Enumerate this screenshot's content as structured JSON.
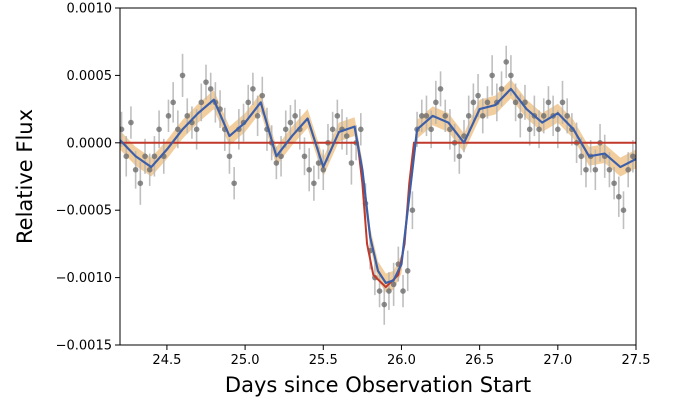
{
  "chart_data": {
    "type": "line",
    "title": "",
    "xlabel": "Days since Observation Start",
    "ylabel": "Relative Flux",
    "xlim": [
      24.2,
      27.5
    ],
    "ylim": [
      -0.0015,
      0.001
    ],
    "x_ticks": [
      24.5,
      25.0,
      25.5,
      26.0,
      26.5,
      27.0,
      27.5
    ],
    "x_tick_labels": [
      "24.5",
      "25.0",
      "25.5",
      "26.0",
      "26.5",
      "27.0",
      "27.5"
    ],
    "y_ticks": [
      0.001,
      0.0005,
      0.0,
      -0.0005,
      -0.001,
      -0.0015
    ],
    "y_tick_labels": [
      "0.0010",
      "0.0005",
      "0.0000",
      "−0.0005",
      "−0.0010",
      "−0.0015"
    ],
    "grid": false,
    "legend": "none",
    "colors": {
      "points": "#6e6e6e",
      "errorbars": "#b4b4b4",
      "gp_mean": "#3d5fa8",
      "gp_band": "#e8a64e",
      "transit_model": "#c0392b"
    },
    "series": [
      {
        "kind": "gp_mean",
        "x": [
          24.2,
          24.3,
          24.4,
          24.5,
          24.6,
          24.7,
          24.8,
          24.9,
          25.0,
          25.1,
          25.2,
          25.3,
          25.4,
          25.5,
          25.6,
          25.7,
          25.75,
          25.8,
          25.85,
          25.9,
          25.95,
          26.0,
          26.05,
          26.1,
          26.2,
          26.3,
          26.4,
          26.5,
          26.6,
          26.7,
          26.8,
          26.9,
          27.0,
          27.1,
          27.2,
          27.3,
          27.4,
          27.5
        ],
        "y": [
          2e-05,
          -0.0001,
          -0.00018,
          -5e-05,
          0.0001,
          0.00022,
          0.00032,
          5e-05,
          0.00015,
          0.0003,
          -0.0001,
          5e-05,
          0.00018,
          -0.00018,
          8e-05,
          0.00012,
          -0.0002,
          -0.0007,
          -0.00095,
          -0.00104,
          -0.00102,
          -0.0009,
          -0.0004,
          0.0001,
          0.0002,
          0.00015,
          0.0,
          0.00025,
          0.00028,
          0.0004,
          0.00025,
          0.00015,
          0.00022,
          0.0001,
          -0.0001,
          -8e-05,
          -0.00018,
          -0.00012
        ]
      },
      {
        "kind": "transit_model",
        "x": [
          24.2,
          25.72,
          25.75,
          25.78,
          25.82,
          25.9,
          25.98,
          26.02,
          26.05,
          26.08,
          27.5
        ],
        "y": [
          0.0,
          0.0,
          -0.0003,
          -0.00075,
          -0.00098,
          -0.00107,
          -0.00098,
          -0.00075,
          -0.0003,
          0.0,
          0.0
        ]
      },
      {
        "kind": "data_points",
        "x": [
          24.21,
          24.24,
          24.27,
          24.3,
          24.33,
          24.36,
          24.39,
          24.42,
          24.45,
          24.48,
          24.51,
          24.54,
          24.57,
          24.6,
          24.63,
          24.66,
          24.69,
          24.72,
          24.75,
          24.78,
          24.81,
          24.84,
          24.87,
          24.9,
          24.93,
          24.96,
          24.99,
          25.02,
          25.05,
          25.08,
          25.11,
          25.14,
          25.17,
          25.2,
          25.23,
          25.26,
          25.29,
          25.32,
          25.35,
          25.38,
          25.41,
          25.44,
          25.47,
          25.5,
          25.53,
          25.56,
          25.59,
          25.62,
          25.65,
          25.68,
          25.71,
          25.74,
          25.77,
          25.8,
          25.83,
          25.86,
          25.89,
          25.92,
          25.95,
          25.98,
          26.01,
          26.04,
          26.07,
          26.1,
          26.13,
          26.16,
          26.19,
          26.22,
          26.25,
          26.28,
          26.31,
          26.34,
          26.37,
          26.4,
          26.43,
          26.46,
          26.49,
          26.52,
          26.55,
          26.58,
          26.61,
          26.64,
          26.67,
          26.7,
          26.73,
          26.76,
          26.79,
          26.82,
          26.85,
          26.88,
          26.91,
          26.94,
          26.97,
          27.0,
          27.03,
          27.06,
          27.09,
          27.12,
          27.15,
          27.18,
          27.21,
          27.24,
          27.27,
          27.3,
          27.33,
          27.36,
          27.39,
          27.42,
          27.45,
          27.48
        ],
        "y": [
          0.0001,
          -0.0001,
          0.00015,
          -0.0002,
          -0.0003,
          -0.0001,
          -0.0002,
          -0.0001,
          0.0001,
          -0.0001,
          0.0002,
          0.0003,
          0.0001,
          0.0005,
          0.0002,
          0.00015,
          0.0001,
          0.0003,
          0.00045,
          0.0004,
          0.0003,
          0.00025,
          0.0001,
          -0.0001,
          -0.0003,
          0.0001,
          0.00015,
          0.0003,
          0.0004,
          0.0002,
          0.00035,
          0.0001,
          0.0,
          -0.00015,
          -0.0001,
          0.0001,
          0.00015,
          0.0002,
          0.0001,
          -0.0001,
          -0.0002,
          -0.0003,
          -0.00015,
          -0.0002,
          0.0,
          0.0001,
          0.0002,
          0.0001,
          5e-05,
          -0.00015,
          0.0,
          0.0001,
          -0.00045,
          -0.0008,
          -0.001,
          -0.0011,
          -0.0012,
          -0.0011,
          -0.00105,
          -0.0009,
          -0.0011,
          -0.00095,
          -0.0005,
          0.0001,
          0.0002,
          0.0002,
          0.0001,
          0.0003,
          0.0004,
          0.0002,
          0.0001,
          0.0,
          -0.0001,
          5e-05,
          0.0002,
          0.0003,
          0.00035,
          0.0002,
          0.0003,
          0.0005,
          0.0003,
          0.0004,
          0.0006,
          0.0005,
          0.0003,
          0.0002,
          0.0003,
          0.0001,
          0.0002,
          0.0001,
          0.0002,
          0.0003,
          0.0002,
          0.0001,
          0.0003,
          0.0002,
          0.0001,
          0.0,
          -0.0001,
          -0.0002,
          -0.0001,
          -0.0002,
          0.0,
          -0.0001,
          -0.0002,
          -0.0003,
          -0.0004,
          -0.0005,
          -0.0002,
          -0.0001
        ],
        "err": [
          0.00013,
          0.00015,
          0.00012,
          0.00014,
          0.00016,
          0.00013,
          0.00012,
          0.00015,
          0.00014,
          0.00013,
          0.00012,
          0.00015,
          0.00014,
          0.00016,
          0.00013,
          0.00012,
          0.00015,
          0.00014,
          0.00013,
          0.00012,
          0.00015,
          0.00014,
          0.00016,
          0.00013,
          0.00012,
          0.00015,
          0.00014,
          0.00013,
          0.00012,
          0.00015,
          0.00014,
          0.00016,
          0.00013,
          0.00012,
          0.00015,
          0.00014,
          0.00013,
          0.00012,
          0.00015,
          0.00014,
          0.00016,
          0.00013,
          0.00012,
          0.00015,
          0.00014,
          0.00013,
          0.00012,
          0.00015,
          0.00014,
          0.00016,
          0.00013,
          0.00012,
          0.00015,
          0.00014,
          0.00013,
          0.00012,
          0.00015,
          0.00014,
          0.00016,
          0.00013,
          0.00012,
          0.00015,
          0.00014,
          0.00013,
          0.00012,
          0.00015,
          0.00014,
          0.00016,
          0.00013,
          0.00012,
          0.00015,
          0.00014,
          0.00013,
          0.00012,
          0.00015,
          0.00014,
          0.00016,
          0.00013,
          0.00012,
          0.00015,
          0.00014,
          0.00013,
          0.00012,
          0.00015,
          0.00014,
          0.00016,
          0.00013,
          0.00012,
          0.00015,
          0.00014,
          0.00013,
          0.00012,
          0.00015,
          0.00014,
          0.00016,
          0.00013,
          0.00012,
          0.00015,
          0.00014,
          0.00013,
          0.00012,
          0.00015,
          0.00014,
          0.00016,
          0.00013,
          0.00012,
          0.00015,
          0.00014,
          0.00013,
          0.00012
        ]
      }
    ]
  }
}
